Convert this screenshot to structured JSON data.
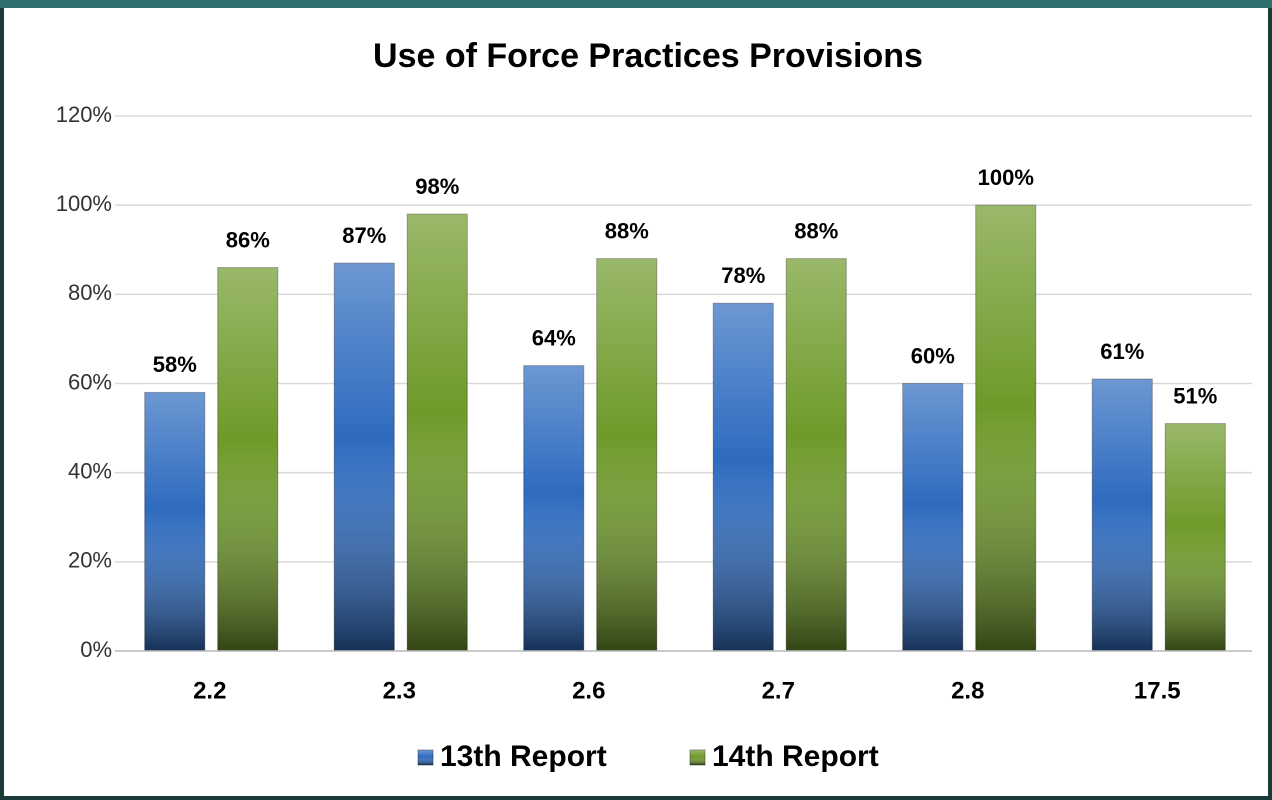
{
  "chart_data": {
    "type": "bar",
    "title": "Use of Force Practices Provisions",
    "categories": [
      "2.2",
      "2.3",
      "2.6",
      "2.7",
      "2.8",
      "17.5"
    ],
    "series": [
      {
        "name": "13th Report",
        "color": "#2e6bbf",
        "values": [
          58,
          87,
          64,
          78,
          60,
          61
        ],
        "value_labels": [
          "58%",
          "87%",
          "64%",
          "78%",
          "60%",
          "61%"
        ]
      },
      {
        "name": "14th Report",
        "color": "#6f9a2a",
        "values": [
          86,
          98,
          88,
          88,
          100,
          51
        ],
        "value_labels": [
          "86%",
          "98%",
          "88%",
          "88%",
          "100%",
          "51%"
        ]
      }
    ],
    "ylim": [
      0,
      120
    ],
    "yticks": [
      {
        "value": 0,
        "label": "0%"
      },
      {
        "value": 20,
        "label": "20%"
      },
      {
        "value": 40,
        "label": "40%"
      },
      {
        "value": 60,
        "label": "60%"
      },
      {
        "value": 80,
        "label": "80%"
      },
      {
        "value": 100,
        "label": "100%"
      },
      {
        "value": 120,
        "label": "120%"
      }
    ],
    "grid": true,
    "legend": "bottom"
  }
}
